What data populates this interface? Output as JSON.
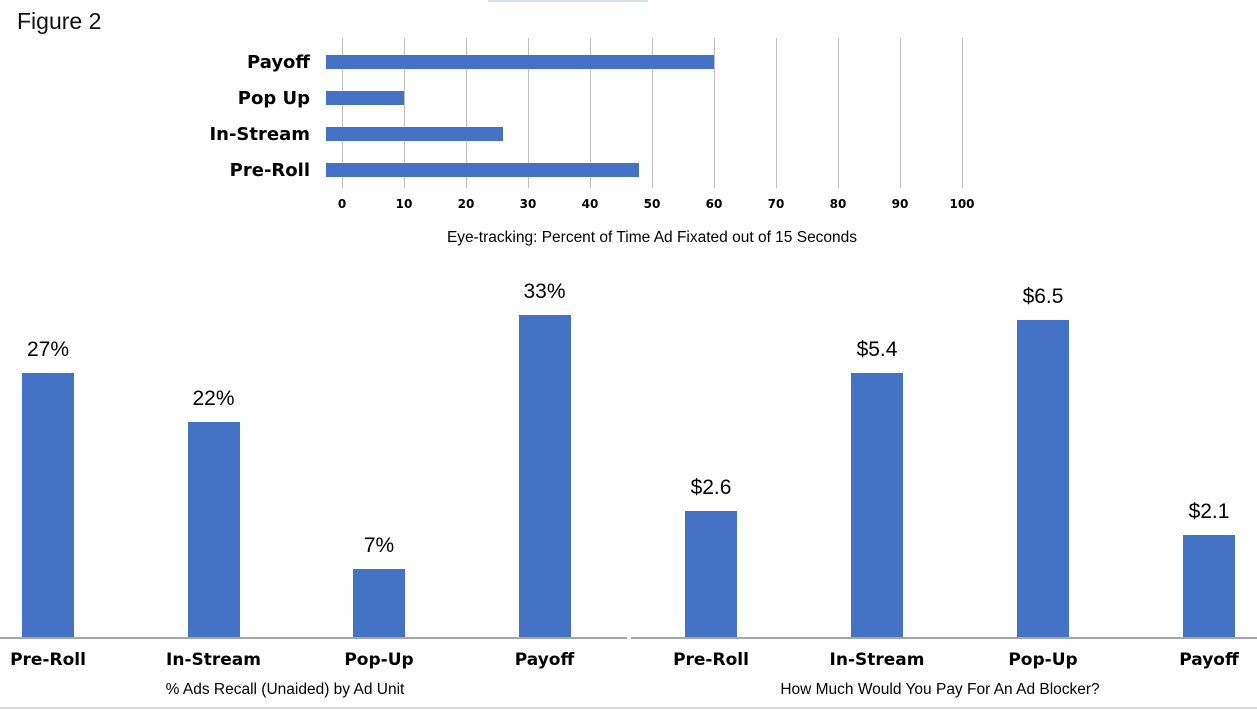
{
  "figure_label": "Figure 2",
  "bar_color": "#4472C4",
  "gridline_color": "#bfbfbf",
  "axis_line_color": "#a6a6a6",
  "chart_data": [
    {
      "type": "bar",
      "orientation": "horizontal",
      "caption": "Eye-tracking: Percent of Time Ad Fixated out of 15 Seconds",
      "categories": [
        "Payoff",
        "Pop Up",
        "In-Stream",
        "Pre-Roll"
      ],
      "values": [
        62.5,
        12.5,
        28.5,
        50.5
      ],
      "xlim": [
        0,
        100
      ],
      "x_ticks": [
        0,
        10,
        20,
        30,
        40,
        50,
        60,
        70,
        80,
        90,
        100
      ],
      "grid": true,
      "legend": false
    },
    {
      "type": "bar",
      "orientation": "vertical",
      "caption": "% Ads Recall (Unaided) by Ad Unit",
      "categories": [
        "Pre-Roll",
        "In-Stream",
        "Pop-Up",
        "Payoff"
      ],
      "values": [
        27,
        22,
        7,
        33
      ],
      "data_labels": [
        "27%",
        "22%",
        "7%",
        "33%"
      ],
      "ylim": [
        0,
        35
      ],
      "grid": false,
      "legend": false
    },
    {
      "type": "bar",
      "orientation": "vertical",
      "caption": "How Much Would You Pay For An Ad Blocker?",
      "categories": [
        "Pre-Roll",
        "In-Stream",
        "Pop-Up",
        "Payoff"
      ],
      "values": [
        2.6,
        5.4,
        6.5,
        2.1
      ],
      "data_labels": [
        "$2.6",
        "$5.4",
        "$6.5",
        "$2.1"
      ],
      "ylim": [
        0,
        7
      ],
      "grid": false,
      "legend": false
    }
  ]
}
